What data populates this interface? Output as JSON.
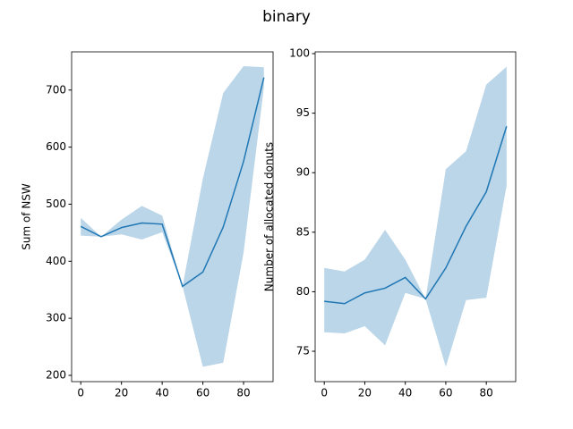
{
  "title": "binary",
  "chart_data": [
    {
      "type": "line",
      "ylabel": "Sum of NSW",
      "x": [
        0,
        10,
        20,
        30,
        40,
        50,
        60,
        70,
        80,
        90
      ],
      "values": [
        461,
        443,
        459,
        467,
        465,
        356,
        381,
        460,
        575,
        722
      ],
      "lower": [
        445,
        443,
        447,
        438,
        451,
        356,
        215,
        222,
        415,
        705
      ],
      "upper": [
        476,
        443,
        473,
        497,
        480,
        356,
        545,
        695,
        742,
        740
      ],
      "color": "#1f77b4",
      "xlim": [
        -4.5,
        94.5
      ],
      "ylim": [
        189,
        767
      ],
      "xticks": [
        0,
        20,
        40,
        60,
        80
      ],
      "yticks": [
        200,
        300,
        400,
        500,
        600,
        700
      ]
    },
    {
      "type": "line",
      "ylabel": "Number of allocated donuts",
      "x": [
        0,
        10,
        20,
        30,
        40,
        50,
        60,
        70,
        80,
        90
      ],
      "values": [
        79.2,
        79.0,
        79.9,
        80.3,
        81.2,
        79.4,
        82.0,
        85.5,
        88.4,
        93.9
      ],
      "lower": [
        76.6,
        76.5,
        77.1,
        75.5,
        79.9,
        79.4,
        73.7,
        79.3,
        79.5,
        88.9
      ],
      "upper": [
        82.0,
        81.7,
        82.7,
        85.2,
        82.7,
        79.4,
        90.3,
        91.8,
        97.4,
        98.9
      ],
      "color": "#1f77b4",
      "xlim": [
        -4.5,
        94.5
      ],
      "ylim": [
        72.45,
        100.15
      ],
      "xticks": [
        0,
        20,
        40,
        60,
        80
      ],
      "yticks": [
        75,
        80,
        85,
        90,
        95,
        100
      ]
    }
  ]
}
